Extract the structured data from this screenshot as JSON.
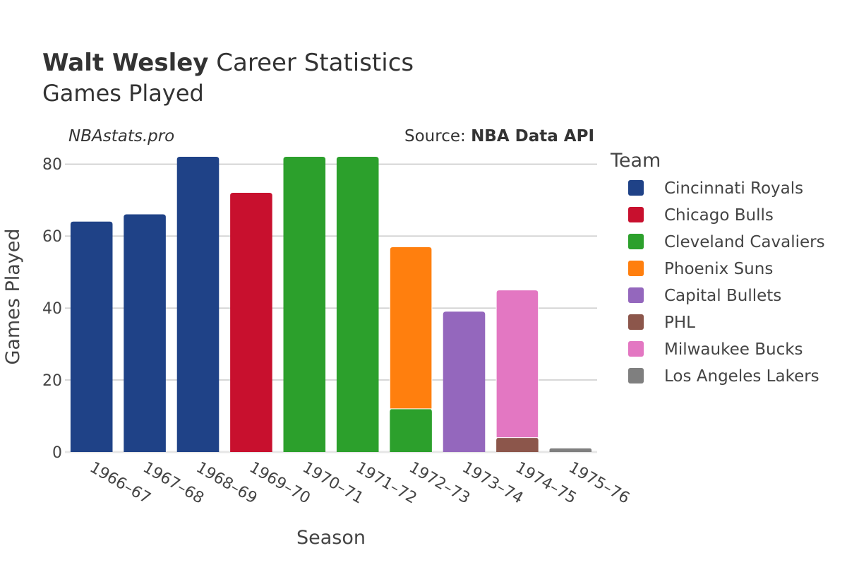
{
  "chart_data": {
    "type": "bar",
    "stacked": true,
    "title_bold": "Walt Wesley",
    "title_rest": " Career Statistics",
    "subtitle": "Games Played",
    "watermark": "NBAstats.pro",
    "source_prefix": "Source: ",
    "source_name": "NBA Data API",
    "xlabel": "Season",
    "ylabel": "Games Played",
    "ylim": [
      0,
      82
    ],
    "yticks": [
      0,
      20,
      40,
      60,
      80
    ],
    "grid": true,
    "legend_title": "Team",
    "legend_position": "right",
    "categories": [
      "1966–67",
      "1967–68",
      "1968–69",
      "1969–70",
      "1970–71",
      "1971–72",
      "1972–73",
      "1973–74",
      "1974–75",
      "1975–76"
    ],
    "series": [
      {
        "name": "Cincinnati Royals",
        "color": "#1f4287",
        "values": [
          64,
          66,
          82,
          0,
          0,
          0,
          0,
          0,
          0,
          0
        ]
      },
      {
        "name": "Chicago Bulls",
        "color": "#c8102e",
        "values": [
          0,
          0,
          0,
          72,
          0,
          0,
          0,
          0,
          0,
          0
        ]
      },
      {
        "name": "Cleveland Cavaliers",
        "color": "#2ca02c",
        "values": [
          0,
          0,
          0,
          0,
          82,
          82,
          12,
          0,
          0,
          0
        ]
      },
      {
        "name": "Phoenix Suns",
        "color": "#ff7f0e",
        "values": [
          0,
          0,
          0,
          0,
          0,
          0,
          45,
          0,
          0,
          0
        ]
      },
      {
        "name": "Capital Bullets",
        "color": "#9467bd",
        "values": [
          0,
          0,
          0,
          0,
          0,
          0,
          0,
          39,
          0,
          0
        ]
      },
      {
        "name": "PHL",
        "color": "#8c564b",
        "values": [
          0,
          0,
          0,
          0,
          0,
          0,
          0,
          0,
          4,
          0
        ]
      },
      {
        "name": "Milwaukee Bucks",
        "color": "#e377c2",
        "values": [
          0,
          0,
          0,
          0,
          0,
          0,
          0,
          0,
          41,
          0
        ]
      },
      {
        "name": "Los Angeles Lakers",
        "color": "#7f7f7f",
        "values": [
          0,
          0,
          0,
          0,
          0,
          0,
          0,
          0,
          0,
          1
        ]
      }
    ]
  }
}
